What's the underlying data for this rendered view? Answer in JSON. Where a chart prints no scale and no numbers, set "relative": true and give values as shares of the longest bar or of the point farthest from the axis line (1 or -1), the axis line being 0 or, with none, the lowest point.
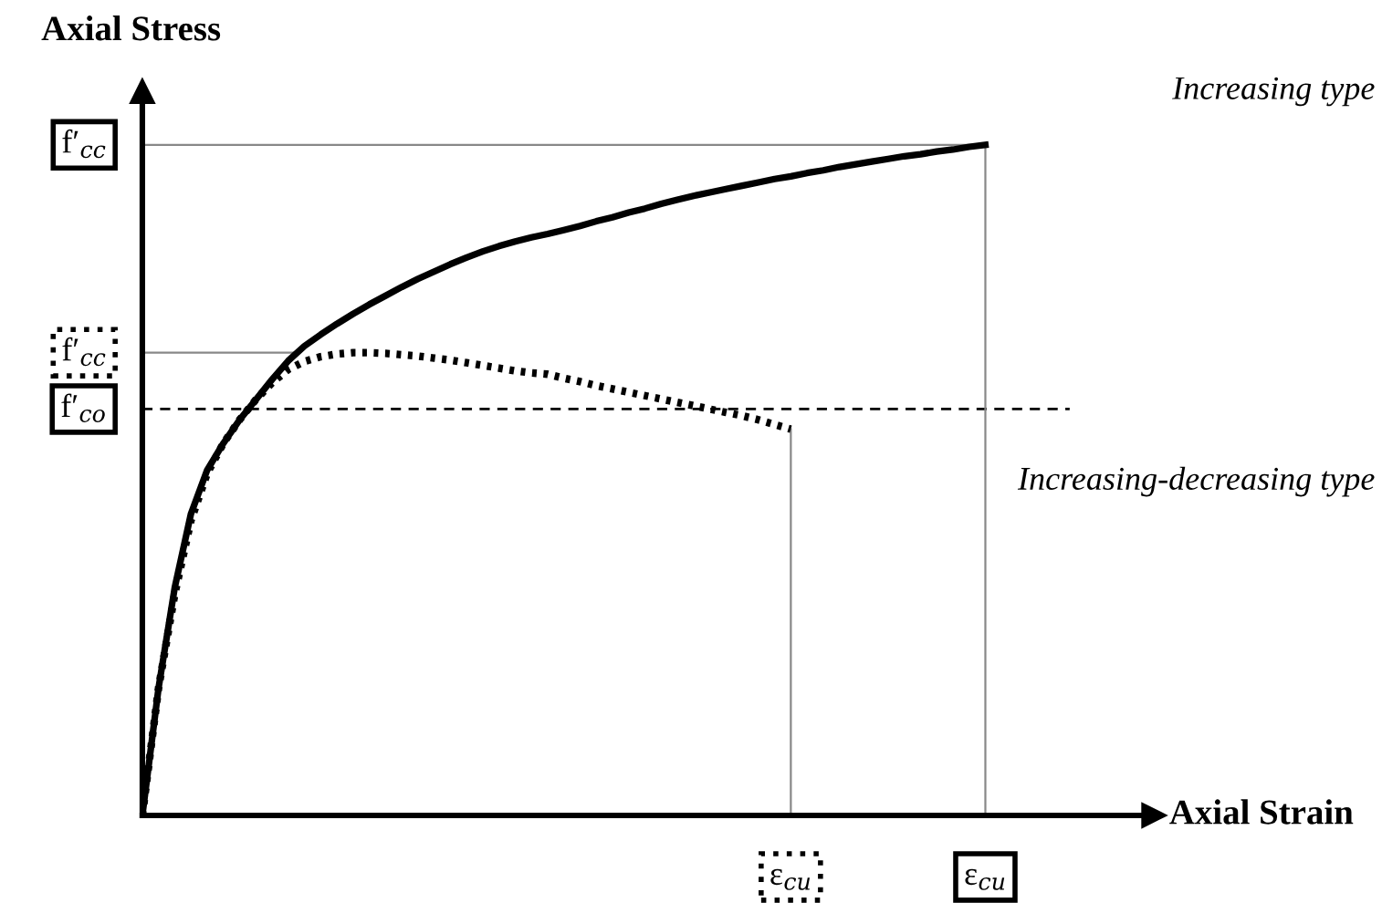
{
  "chart_data": {
    "type": "line",
    "relative": true,
    "ylabel": "Axial Stress",
    "annotations": [
      "ε$_{cu}$",
      "ε$_{cu}$",
      "Axial Strain"
    ],
    "categories": [
      null,
      null,
      null,
      null,
      null,
      null,
      null,
      null,
      null,
      null,
      null,
      null,
      null,
      null,
      null,
      null,
      null,
      null,
      null,
      null,
      null,
      null,
      null,
      null,
      null,
      null,
      null,
      null,
      null,
      null,
      null,
      null,
      null,
      null,
      null,
      null,
      null,
      null,
      null,
      null,
      null,
      null,
      null,
      null,
      null,
      null,
      null,
      null,
      null,
      null,
      null,
      null,
      null
    ],
    "series": [
      {
        "name": "Increasing type",
        "color": "#000000",
        "line_style": "solid",
        "values": [
          0,
          0.19,
          0.34,
          0.45,
          0.515,
          0.555,
          0.59,
          0.62,
          0.65,
          0.678,
          0.7,
          0.717,
          0.733,
          0.748,
          0.762,
          0.775,
          0.788,
          0.8,
          0.811,
          0.822,
          0.832,
          0.841,
          0.849,
          0.856,
          0.862,
          0.867,
          0.873,
          0.879,
          0.886,
          0.892,
          0.899,
          0.905,
          0.912,
          0.918,
          0.924,
          0.929,
          0.934,
          0.939,
          0.944,
          0.949,
          0.953,
          0.958,
          0.962,
          0.967,
          0.971,
          0.975,
          0.979,
          0.983,
          0.986,
          0.99,
          0.993,
          0.997,
          1
        ]
      },
      {
        "name": "Increasing-decreasing type",
        "color": "#000000",
        "line_style": "dotted",
        "values": [
          0,
          0.19,
          0.33,
          0.44,
          0.51,
          0.555,
          0.59,
          0.62,
          0.645,
          0.665,
          0.677,
          0.684,
          0.688,
          0.69,
          0.69,
          0.689,
          0.687,
          0.685,
          0.682,
          0.679,
          0.675,
          0.671,
          0.667,
          0.663,
          0.66,
          0.658,
          0.652,
          0.647,
          0.641,
          0.636,
          0.631,
          0.626,
          0.621,
          0.616,
          0.611,
          0.606,
          0.601,
          0.596,
          0.59,
          0.583,
          0.576,
          null,
          null,
          null,
          null,
          null,
          null,
          null,
          null,
          null,
          null,
          null,
          null
        ]
      }
    ],
    "ref_lines": [
      {
        "axis": "y",
        "value": 1,
        "label": "f′$_{cc}$",
        "color": "#888888",
        "line_style": "solid"
      },
      {
        "axis": "y",
        "value": 0.69,
        "label": "f′$_{cc}$",
        "color": "#888888",
        "line_style": "solid"
      },
      {
        "axis": "y",
        "value": 0.606,
        "label": "f′$_{co}$",
        "color": "#000000",
        "line_style": "dashed"
      }
    ]
  }
}
